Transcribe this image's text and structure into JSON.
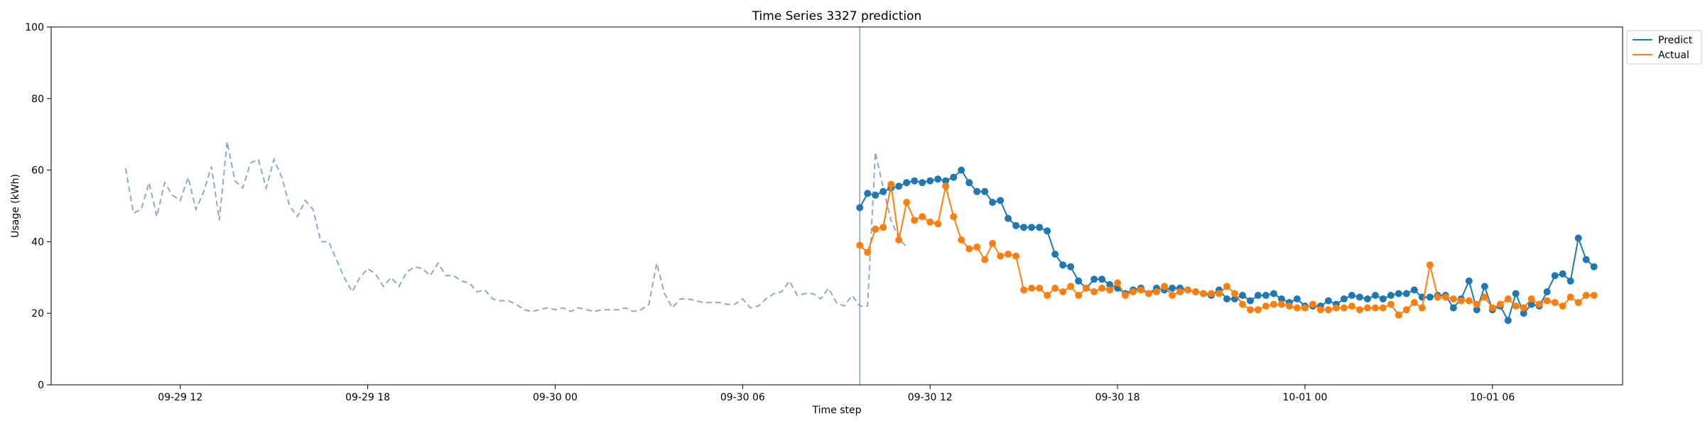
{
  "chart_data": {
    "type": "line",
    "title": "Time Series 3327 prediction",
    "xlabel": "Time step",
    "ylabel": "Usage (kWh)",
    "ylim": [
      0,
      100
    ],
    "yticks": [
      0,
      20,
      40,
      60,
      80,
      100
    ],
    "xlim": [
      "2024-09-29 07:52",
      "2024-10-01 10:10"
    ],
    "xticks": [
      {
        "label": "09-29 12",
        "x": "2024-09-29 12:00"
      },
      {
        "label": "09-29 18",
        "x": "2024-09-29 18:00"
      },
      {
        "label": "09-30 00",
        "x": "2024-09-30 00:00"
      },
      {
        "label": "09-30 06",
        "x": "2024-09-30 06:00"
      },
      {
        "label": "09-30 12",
        "x": "2024-09-30 12:00"
      },
      {
        "label": "09-30 18",
        "x": "2024-09-30 18:00"
      },
      {
        "label": "10-01 00",
        "x": "2024-10-01 00:00"
      },
      {
        "label": "10-01 06",
        "x": "2024-10-01 06:00"
      }
    ],
    "forecast_start": "2024-09-30 09:45",
    "legend": {
      "position": "top-right outside",
      "entries": [
        "Predict",
        "Actual"
      ]
    },
    "grid": false,
    "x_interval_minutes": 15,
    "history": {
      "style": "dashed",
      "color": "#8fa8cb",
      "start": "2024-09-29 10:15",
      "values": [
        60.5,
        48,
        49,
        56.5,
        47,
        56.5,
        53,
        51.5,
        58,
        49,
        54,
        61,
        46,
        68,
        57,
        55,
        62,
        63,
        55,
        63,
        58,
        50,
        47,
        51.5,
        49,
        40,
        40,
        35,
        30,
        26,
        30,
        32.5,
        31,
        27.5,
        30,
        27.5,
        31.5,
        33,
        32.5,
        30.5,
        34,
        30.5,
        30.5,
        29,
        28.5,
        26,
        26.5,
        24,
        23.5,
        23.5,
        22.5,
        21,
        20.5,
        21,
        21.5,
        21,
        21.5,
        20.5,
        21.5,
        21,
        20.5,
        21,
        21,
        21,
        21.5,
        20.5,
        21,
        22.5,
        34,
        25.5,
        21.5,
        24,
        24,
        23.5,
        23,
        23,
        23,
        22.5,
        22.5,
        24,
        21.5,
        22,
        24,
        25.5,
        26,
        29,
        25,
        25.5,
        25.5,
        24,
        27,
        23,
        22,
        25,
        22,
        22,
        65,
        55,
        46,
        41,
        38.5
      ]
    },
    "series": [
      {
        "name": "Predict",
        "color": "#1f77b4",
        "start": "2024-09-30 09:45",
        "values": [
          49.5,
          53.5,
          53,
          54,
          55,
          55.5,
          56.5,
          57,
          56.5,
          57,
          57.5,
          57,
          58,
          60,
          56.5,
          54,
          54,
          51,
          51.5,
          46.5,
          44.5,
          44,
          44,
          44,
          43,
          36.5,
          33.5,
          33,
          29,
          27,
          29.5,
          29.5,
          28,
          27,
          25.5,
          26.5,
          27,
          25.5,
          27,
          26.5,
          27,
          27,
          26.5,
          26,
          25.5,
          25,
          26.5,
          24,
          24,
          25,
          23.5,
          25,
          25,
          25.5,
          24,
          23,
          24,
          22,
          22,
          22,
          23.5,
          22.5,
          24,
          25,
          24.5,
          24,
          25,
          24,
          25,
          25.5,
          25.5,
          26.5,
          24.5,
          24.5,
          25,
          25,
          21.5,
          24,
          29,
          21,
          27.5,
          21,
          22,
          18,
          25.5,
          20,
          22.5,
          22,
          26,
          30.5,
          31,
          29,
          41,
          35,
          33
        ]
      },
      {
        "name": "Actual",
        "color": "#ff7f0e",
        "start": "2024-09-30 09:45",
        "values": [
          39,
          37,
          43.5,
          44,
          56,
          40.5,
          51,
          46,
          47,
          45.5,
          45,
          55.5,
          47,
          40.5,
          38,
          38.5,
          35,
          39.5,
          36,
          36.5,
          36,
          26.5,
          27,
          27,
          25,
          27,
          26,
          27.5,
          25,
          27,
          26,
          27,
          26.5,
          28.5,
          25,
          26,
          26.5,
          25.5,
          26,
          27.5,
          25,
          26,
          26.5,
          26,
          25.5,
          25.5,
          25.5,
          27.5,
          25.5,
          22.5,
          21,
          21,
          22,
          22.5,
          22.5,
          22,
          21.5,
          21.5,
          22.5,
          21,
          21,
          21.5,
          21.5,
          22,
          21,
          21.5,
          21.5,
          21.5,
          22.5,
          19.5,
          21,
          23,
          21.5,
          33.5,
          24.5,
          24.5,
          24,
          23.5,
          23.5,
          22.5,
          24.5,
          21.5,
          22.5,
          24,
          22,
          21.5,
          24,
          22.5,
          23.5,
          23,
          22,
          24.5,
          23,
          25,
          25
        ]
      }
    ]
  }
}
